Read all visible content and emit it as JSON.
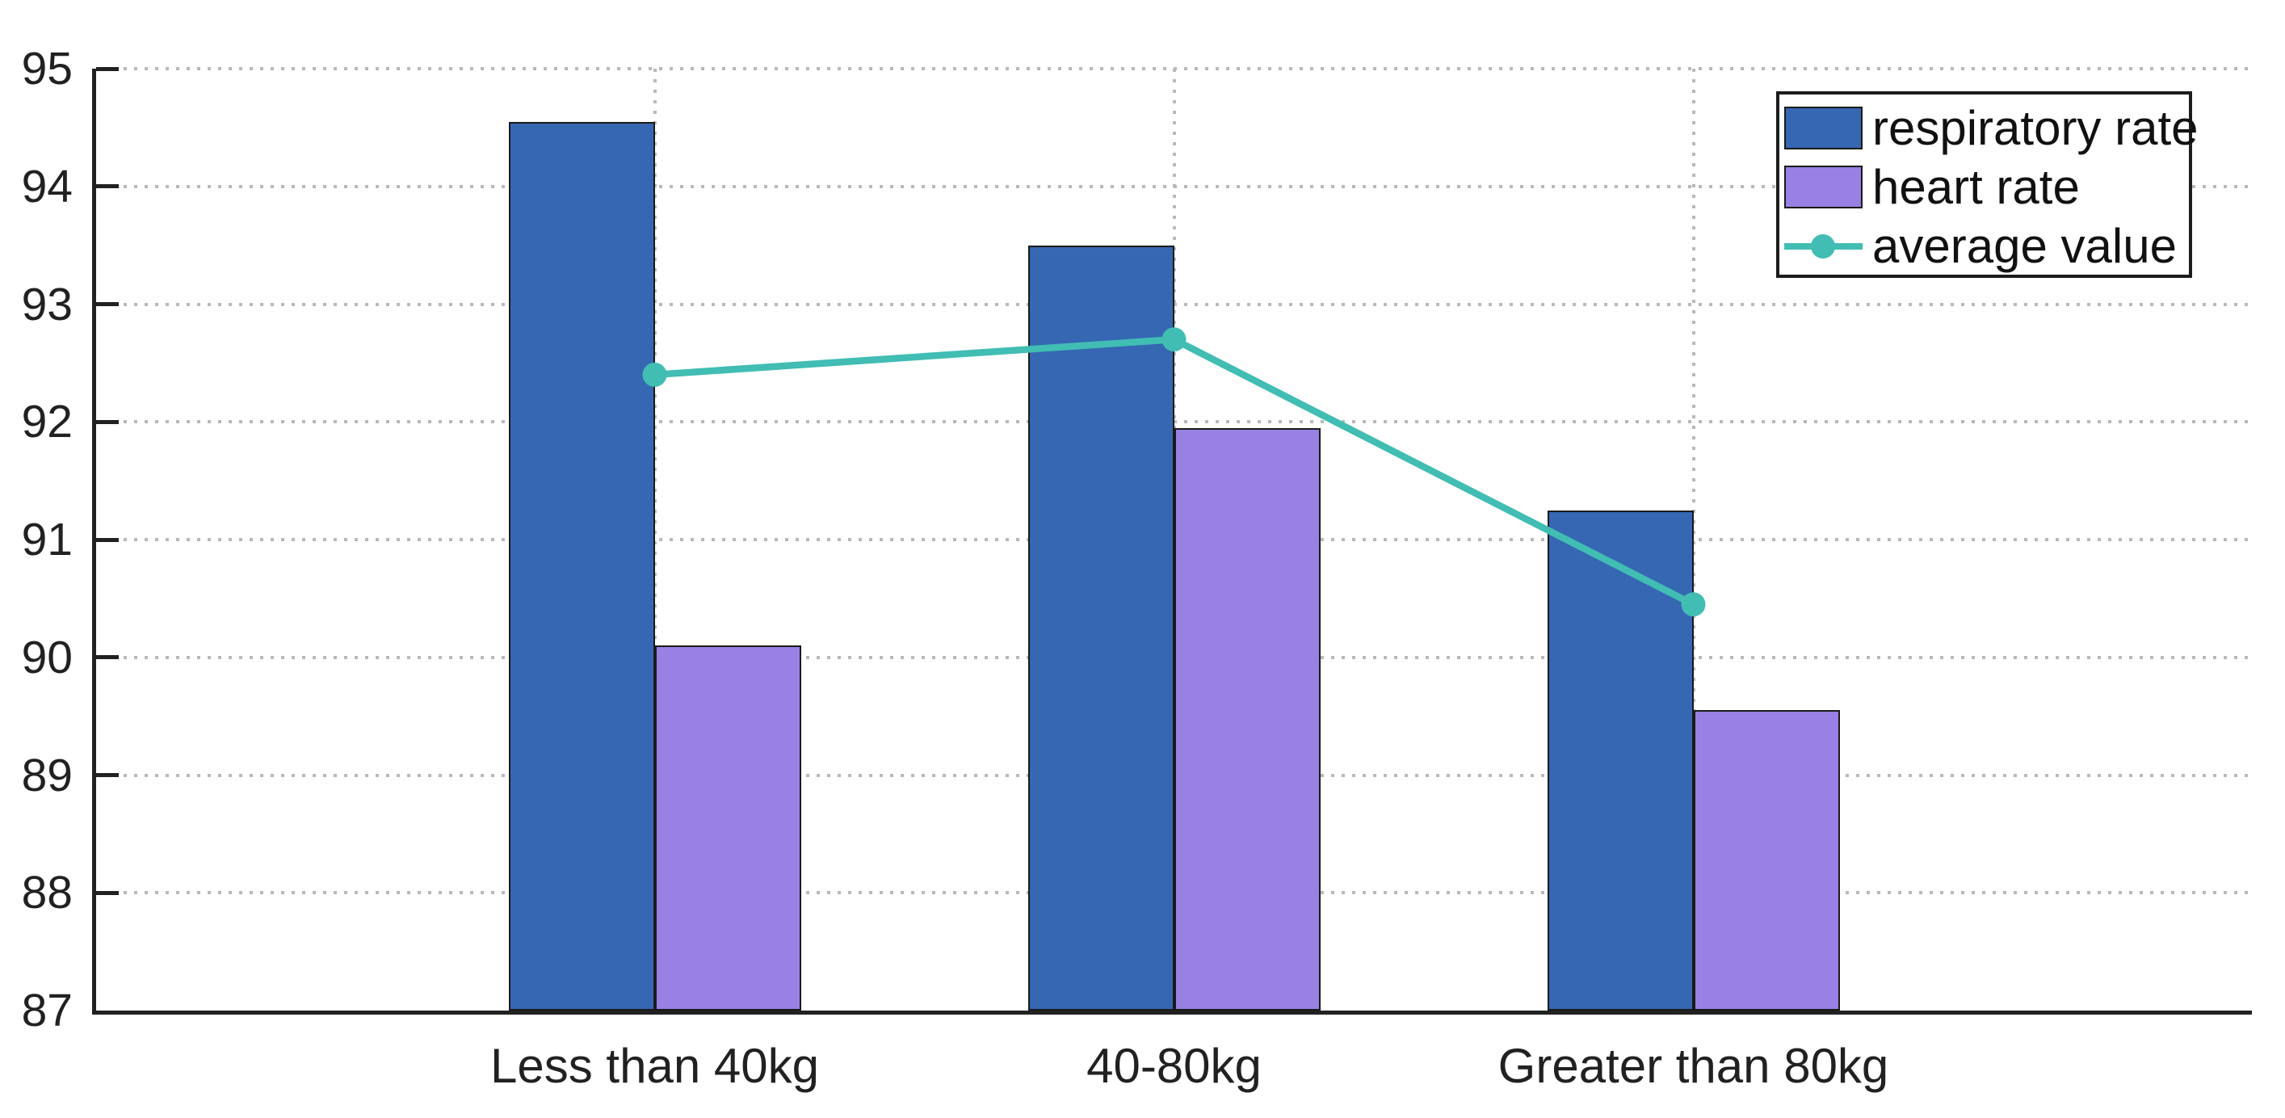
{
  "chart_data": {
    "type": "bar",
    "title": "",
    "xlabel": "",
    "ylabel": "",
    "categories": [
      "Less than 40kg",
      "40-80kg",
      "Greater than 80kg"
    ],
    "series": [
      {
        "name": "respiratory rate",
        "type": "bar",
        "color": "#3567B2",
        "values": [
          94.55,
          93.5,
          91.25
        ]
      },
      {
        "name": "heart rate",
        "type": "bar",
        "color": "#9980E4",
        "values": [
          90.1,
          91.95,
          89.55
        ]
      },
      {
        "name": "average value",
        "type": "line",
        "color": "#41BDB3",
        "values": [
          92.4,
          92.7,
          90.45
        ]
      }
    ],
    "ylim": [
      87,
      95
    ],
    "yticks": [
      87,
      88,
      89,
      90,
      91,
      92,
      93,
      94,
      95
    ],
    "grid": {
      "horizontal": true,
      "vertical": true,
      "style": "dotted",
      "color": "#b9b9b9"
    },
    "axis_color": "#212121",
    "legend_position": "top-right",
    "legend_entries": [
      "respiratory rate",
      "heart rate",
      "average value"
    ]
  }
}
